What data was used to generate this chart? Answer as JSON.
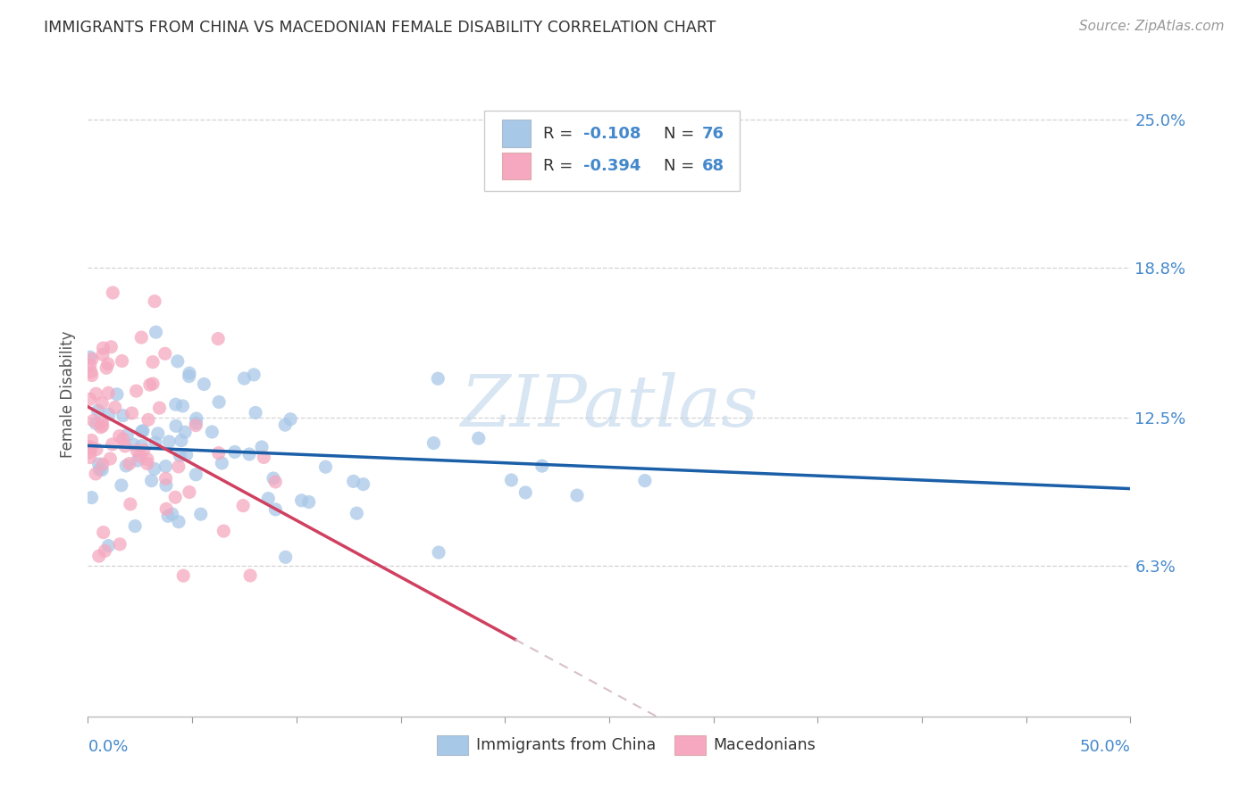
{
  "title": "IMMIGRANTS FROM CHINA VS MACEDONIAN FEMALE DISABILITY CORRELATION CHART",
  "source": "Source: ZipAtlas.com",
  "ylabel": "Female Disability",
  "y_ticks": [
    0.063,
    0.125,
    0.188,
    0.25
  ],
  "y_tick_labels": [
    "6.3%",
    "12.5%",
    "18.8%",
    "25.0%"
  ],
  "xlim": [
    0.0,
    0.5
  ],
  "ylim": [
    0.0,
    0.27
  ],
  "color_china": "#a8c8e8",
  "color_macedonia": "#f5a8c0",
  "color_china_line": "#1a5fa8",
  "color_macedonia_line": "#d04060",
  "color_macedonia_line_ext": "#d8c0c8",
  "watermark": "ZIPatlas",
  "china_r": -0.108,
  "mac_r": -0.394,
  "china_n": 76,
  "mac_n": 68
}
